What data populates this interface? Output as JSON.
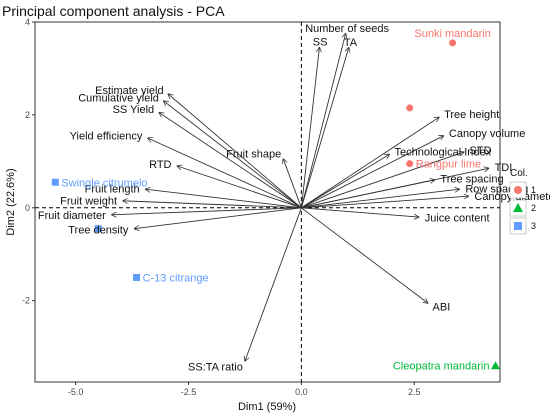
{
  "chart_data": {
    "type": "scatter",
    "title": "Principal component analysis - PCA",
    "xlabel": "Dim1 (59%)",
    "ylabel": "Dim2 (22.6%)",
    "xlim": [
      -5.9,
      4.4
    ],
    "ylim": [
      -3.75,
      4.0
    ],
    "x_ticks": [
      -5.0,
      -2.5,
      0.0,
      2.5
    ],
    "y_ticks": [
      -2,
      0,
      2,
      4
    ],
    "x_tick_labels": [
      "-5.0",
      "-2.5",
      "0.0",
      "2.5"
    ],
    "y_tick_labels": [
      "-2",
      "0",
      "2",
      "4"
    ],
    "grid": false,
    "legend": {
      "title": "Col.",
      "placement": "right",
      "entries": [
        {
          "label": "1",
          "color": "#f8766d",
          "shape": "circle"
        },
        {
          "label": "2",
          "color": "#00ba38",
          "shape": "triangle"
        },
        {
          "label": "3",
          "color": "#619cff",
          "shape": "square"
        }
      ]
    },
    "variables": [
      {
        "name": "Number of seeds",
        "x": 0.98,
        "y": 3.75
      },
      {
        "name": "SS",
        "x": 0.4,
        "y": 3.45
      },
      {
        "name": "TA",
        "x": 1.05,
        "y": 3.45
      },
      {
        "name": "Estimate yield",
        "x": -2.95,
        "y": 2.45
      },
      {
        "name": "Cumulative yield",
        "x": -3.05,
        "y": 2.3
      },
      {
        "name": "SS Yield",
        "x": -3.15,
        "y": 2.05
      },
      {
        "name": "Yield efficiency",
        "x": -3.4,
        "y": 1.5
      },
      {
        "name": "Fruit shape",
        "x": -0.4,
        "y": 1.05
      },
      {
        "name": "Tree height",
        "x": 3.05,
        "y": 1.95
      },
      {
        "name": "Canopy volume",
        "x": 3.15,
        "y": 1.55
      },
      {
        "name": "STD",
        "x": 3.6,
        "y": 1.2
      },
      {
        "name": "Technological Index",
        "x": 1.95,
        "y": 1.15
      },
      {
        "name": "TDI",
        "x": 4.15,
        "y": 0.85
      },
      {
        "name": "Tree spacing",
        "x": 2.95,
        "y": 0.6
      },
      {
        "name": "Row spacing",
        "x": 3.5,
        "y": 0.4
      },
      {
        "name": "Canopy diameter",
        "x": 3.7,
        "y": 0.25
      },
      {
        "name": "RTD",
        "x": -2.75,
        "y": 0.9
      },
      {
        "name": "Fruit length",
        "x": -3.45,
        "y": 0.4
      },
      {
        "name": "Fruit weight",
        "x": -3.95,
        "y": 0.15
      },
      {
        "name": "Fruit diameter",
        "x": -4.2,
        "y": -0.15
      },
      {
        "name": "Tree density",
        "x": -3.7,
        "y": -0.45
      },
      {
        "name": "Juice content",
        "x": 2.6,
        "y": -0.2
      },
      {
        "name": "ABI",
        "x": 2.8,
        "y": -2.05
      },
      {
        "name": "SS:TA ratio",
        "x": -1.25,
        "y": -3.3
      }
    ],
    "individuals": [
      {
        "name": "Sunki mandarin",
        "x": 3.35,
        "y": 3.55,
        "group": "1"
      },
      {
        "name": "",
        "x": 2.4,
        "y": 2.15,
        "group": "1"
      },
      {
        "name": "Rangpur lime",
        "x": 2.4,
        "y": 0.95,
        "group": "1"
      },
      {
        "name": "Swingle citrumelo",
        "x": -5.45,
        "y": 0.55,
        "group": "3"
      },
      {
        "name": "",
        "x": -4.5,
        "y": -0.45,
        "group": "3"
      },
      {
        "name": "C-13 citrange",
        "x": -3.65,
        "y": -1.5,
        "group": "3"
      },
      {
        "name": "Cleopatra mandarin",
        "x": 4.3,
        "y": -3.4,
        "group": "2"
      }
    ]
  }
}
